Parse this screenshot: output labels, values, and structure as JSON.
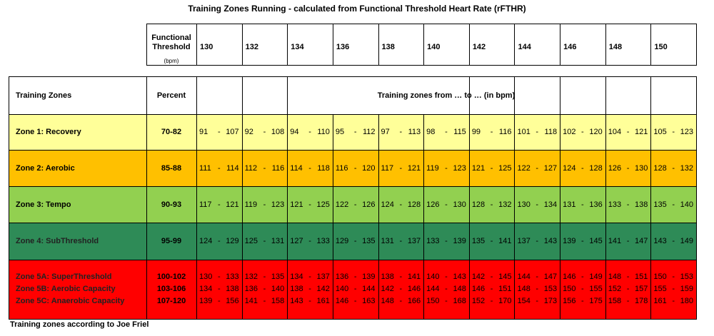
{
  "title": "Training Zones Running - calculated from Functional Threshold Heart Rate (rFTHR)",
  "threshold_header": {
    "label": "Functional Threshold",
    "unit": "(bpm)",
    "values": [
      130,
      132,
      134,
      136,
      138,
      140,
      142,
      144,
      146,
      148,
      150
    ]
  },
  "table": {
    "columns": [
      "Training Zones",
      "Percent",
      "Training zones from … to … (in bpm)"
    ],
    "separator": "-",
    "rows": [
      {
        "zone": "Zone 1: Recovery",
        "percent": "70-82",
        "ranges": [
          [
            91,
            107
          ],
          [
            92,
            108
          ],
          [
            94,
            110
          ],
          [
            95,
            112
          ],
          [
            97,
            113
          ],
          [
            98,
            115
          ],
          [
            99,
            116
          ],
          [
            101,
            118
          ],
          [
            102,
            120
          ],
          [
            104,
            121
          ],
          [
            105,
            123
          ]
        ]
      },
      {
        "zone": "Zone 2: Aerobic",
        "percent": "85-88",
        "ranges": [
          [
            111,
            114
          ],
          [
            112,
            116
          ],
          [
            114,
            118
          ],
          [
            116,
            120
          ],
          [
            117,
            121
          ],
          [
            119,
            123
          ],
          [
            121,
            125
          ],
          [
            122,
            127
          ],
          [
            124,
            128
          ],
          [
            126,
            130
          ],
          [
            128,
            132
          ]
        ]
      },
      {
        "zone": "Zone 3: Tempo",
        "percent": "90-93",
        "ranges": [
          [
            117,
            121
          ],
          [
            119,
            123
          ],
          [
            121,
            125
          ],
          [
            122,
            126
          ],
          [
            124,
            128
          ],
          [
            126,
            130
          ],
          [
            128,
            132
          ],
          [
            130,
            134
          ],
          [
            131,
            136
          ],
          [
            133,
            138
          ],
          [
            135,
            140
          ]
        ]
      },
      {
        "zone": "Zone 4: SubThreshold",
        "percent": "95-99",
        "ranges": [
          [
            124,
            129
          ],
          [
            125,
            131
          ],
          [
            127,
            133
          ],
          [
            129,
            135
          ],
          [
            131,
            137
          ],
          [
            133,
            139
          ],
          [
            135,
            141
          ],
          [
            137,
            143
          ],
          [
            139,
            145
          ],
          [
            141,
            147
          ],
          [
            143,
            149
          ]
        ]
      },
      {
        "zone": "Zone 5A: SuperThreshold",
        "percent": "100-102",
        "ranges": [
          [
            130,
            133
          ],
          [
            132,
            135
          ],
          [
            134,
            137
          ],
          [
            136,
            139
          ],
          [
            138,
            141
          ],
          [
            140,
            143
          ],
          [
            142,
            145
          ],
          [
            144,
            147
          ],
          [
            146,
            149
          ],
          [
            148,
            151
          ],
          [
            150,
            153
          ]
        ]
      },
      {
        "zone": "Zone 5B: Aerobic Capacity",
        "percent": "103-106",
        "ranges": [
          [
            134,
            138
          ],
          [
            136,
            140
          ],
          [
            138,
            142
          ],
          [
            140,
            144
          ],
          [
            142,
            146
          ],
          [
            144,
            148
          ],
          [
            146,
            151
          ],
          [
            148,
            153
          ],
          [
            150,
            155
          ],
          [
            152,
            157
          ],
          [
            155,
            159
          ]
        ]
      },
      {
        "zone": "Zone 5C: Anaerobic Capacity",
        "percent": "107-120",
        "ranges": [
          [
            139,
            156
          ],
          [
            141,
            158
          ],
          [
            143,
            161
          ],
          [
            146,
            163
          ],
          [
            148,
            166
          ],
          [
            150,
            168
          ],
          [
            152,
            170
          ],
          [
            154,
            173
          ],
          [
            156,
            175
          ],
          [
            158,
            178
          ],
          [
            161,
            180
          ]
        ]
      }
    ]
  },
  "footnote": "Training zones according to Joe Friel"
}
